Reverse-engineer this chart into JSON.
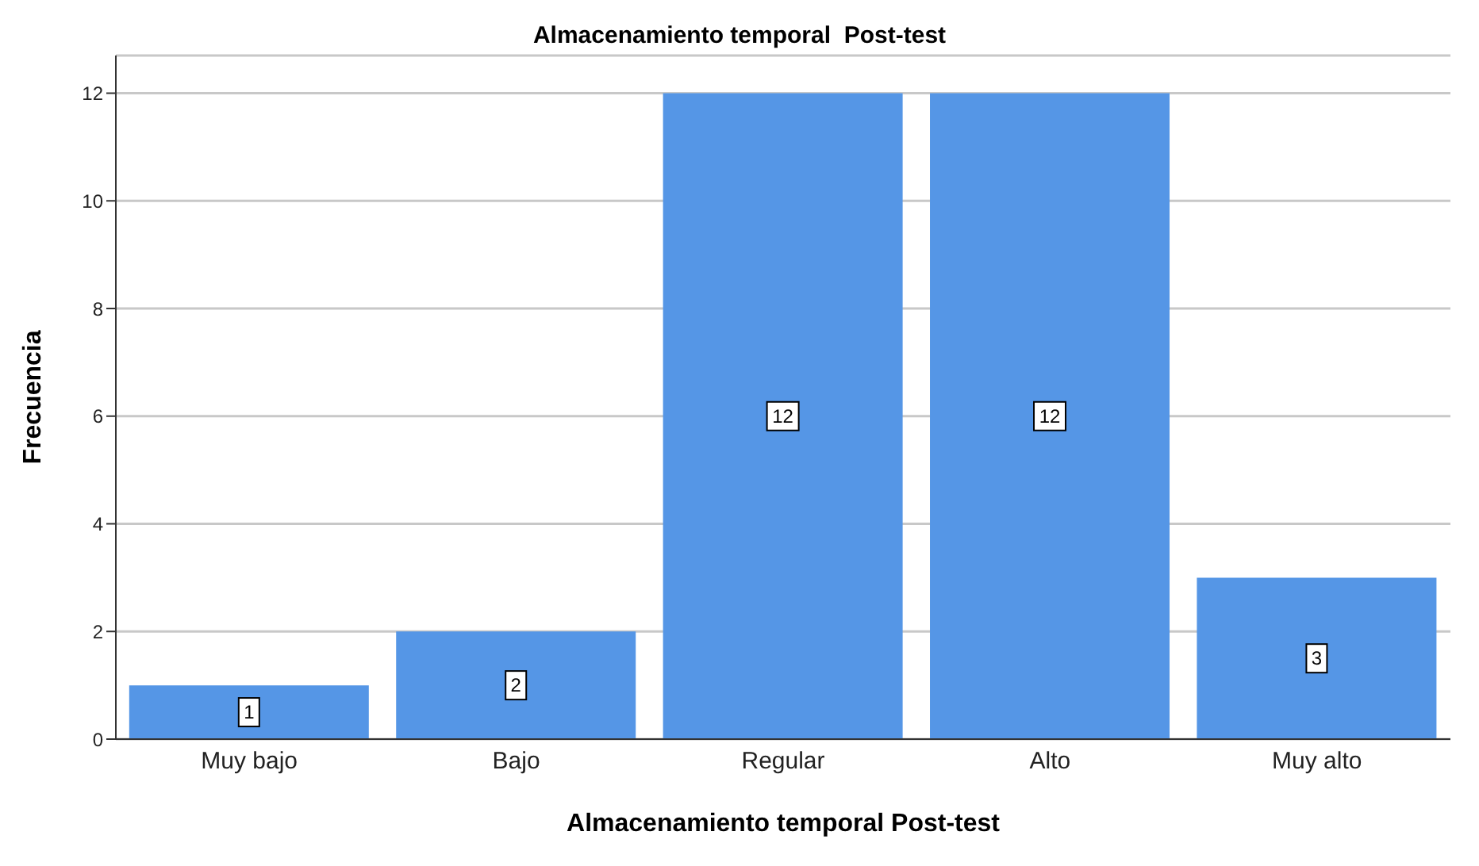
{
  "chart_data": {
    "type": "bar",
    "title": "Almacenamiento temporal  Post-test",
    "xlabel": "Almacenamiento temporal  Post-test",
    "ylabel": "Frecuencia",
    "categories": [
      "Muy bajo",
      "Bajo",
      "Regular",
      "Alto",
      "Muy alto"
    ],
    "values": [
      1,
      2,
      12,
      12,
      3
    ],
    "color": "#5596e6",
    "ylim": [
      0,
      12.7
    ],
    "yticks": [
      0,
      2,
      4,
      6,
      8,
      10,
      12
    ],
    "grid": "y",
    "data_labels": true
  }
}
